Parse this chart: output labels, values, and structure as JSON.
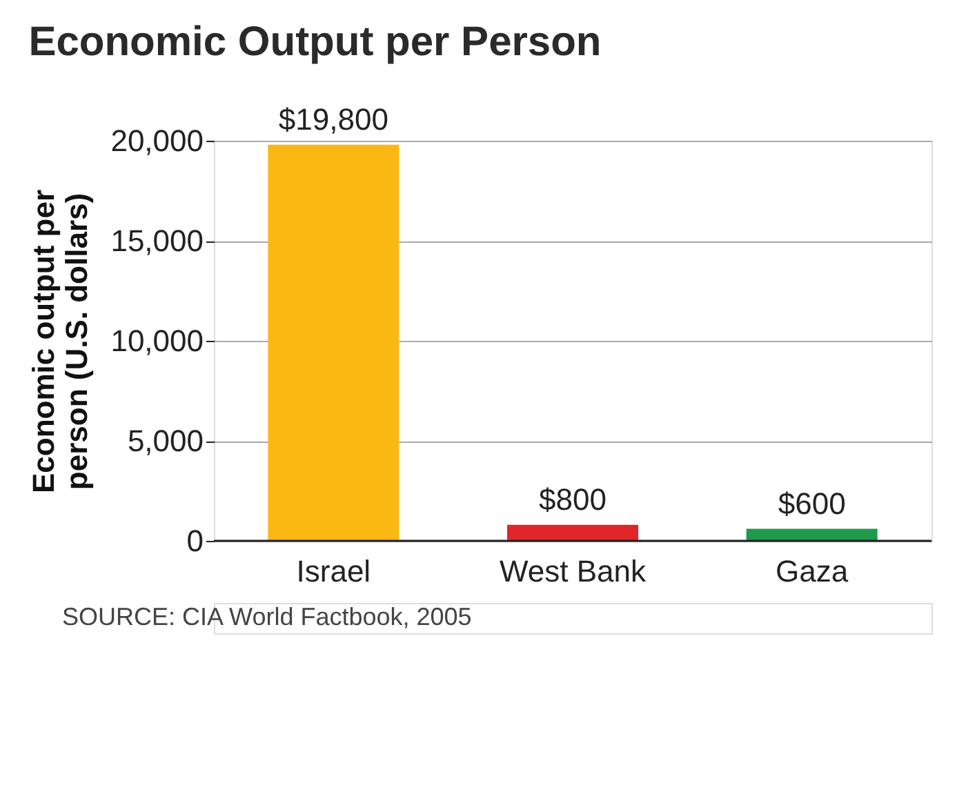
{
  "chart_data": {
    "type": "bar",
    "title": "Economic Output per Person",
    "ylabel": "Economic output per person (U.S. dollars)",
    "categories": [
      "Israel",
      "West Bank",
      "Gaza"
    ],
    "values": [
      19800,
      800,
      600
    ],
    "colors": [
      "#fbb812",
      "#e0262b",
      "#1e9a4c"
    ],
    "value_labels": [
      "$19,800",
      "$800",
      "$600"
    ],
    "ylim": [
      0,
      20000
    ],
    "yticks": [
      0,
      {
        "value": 5000,
        "label": "5,000"
      },
      {
        "value": 10000,
        "label": "10,000"
      },
      {
        "value": 15000,
        "label": "15,000"
      },
      {
        "value": 20000,
        "label": "20,000"
      }
    ],
    "grid": "y",
    "annotations": [
      "SOURCE: CIA World Factbook, 2005"
    ]
  }
}
